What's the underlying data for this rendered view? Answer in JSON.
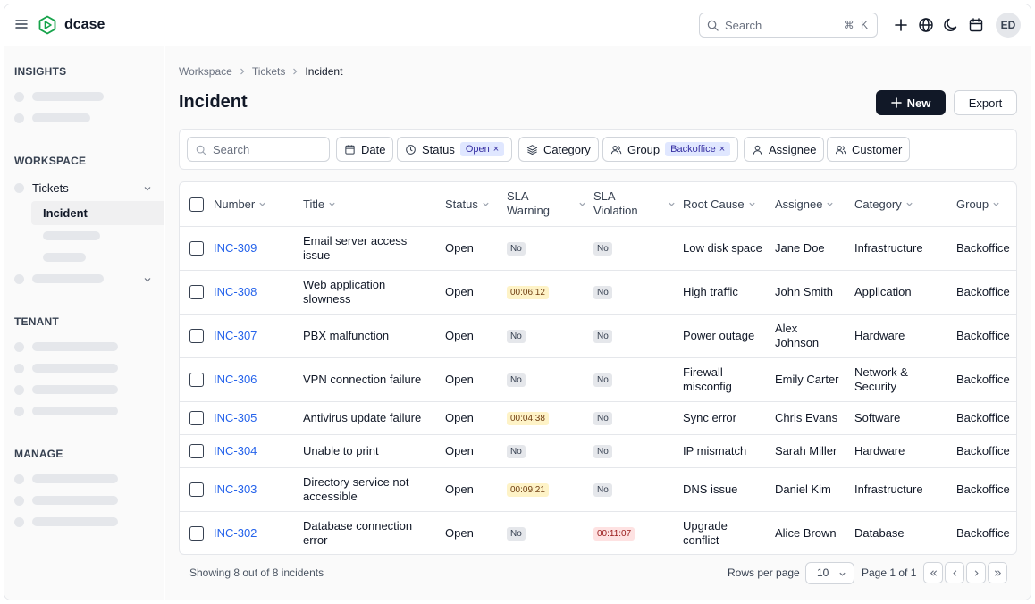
{
  "header": {
    "brand": "dcase",
    "search_placeholder": "Search",
    "search_shortcut": "⌘ K",
    "avatar_initials": "ED"
  },
  "sidebar": {
    "sections": {
      "insights": "INSIGHTS",
      "workspace": "WORKSPACE",
      "tenant": "TENANT",
      "manage": "MANAGE"
    },
    "tickets_label": "Tickets",
    "incident_label": "Incident"
  },
  "breadcrumb": [
    "Workspace",
    "Tickets",
    "Incident"
  ],
  "page": {
    "title": "Incident",
    "new_label": "New",
    "export_label": "Export"
  },
  "filters": {
    "search_placeholder": "Search",
    "date": "Date",
    "status": "Status",
    "status_tag": "Open",
    "category": "Category",
    "group": "Group",
    "group_tag": "Backoffice",
    "assignee": "Assignee",
    "customer": "Customer",
    "tag_remove": "×"
  },
  "table": {
    "columns": [
      "Number",
      "Title",
      "Status",
      "SLA Warning",
      "SLA Violation",
      "Root Cause",
      "Assignee",
      "Category",
      "Group"
    ],
    "rows": [
      {
        "number": "INC-309",
        "title": "Email server access issue",
        "status": "Open",
        "sla_warning": "No",
        "sla_violation": "No",
        "root_cause": "Low disk space",
        "assignee": "Jane Doe",
        "category": "Infrastructure",
        "group": "Backoffice"
      },
      {
        "number": "INC-308",
        "title": "Web application slowness",
        "status": "Open",
        "sla_warning": "00:06:12",
        "sla_violation": "No",
        "root_cause": "High traffic",
        "assignee": "John Smith",
        "category": "Application",
        "group": "Backoffice"
      },
      {
        "number": "INC-307",
        "title": "PBX malfunction",
        "status": "Open",
        "sla_warning": "No",
        "sla_violation": "No",
        "root_cause": "Power outage",
        "assignee": "Alex Johnson",
        "category": "Hardware",
        "group": "Backoffice"
      },
      {
        "number": "INC-306",
        "title": "VPN connection failure",
        "status": "Open",
        "sla_warning": "No",
        "sla_violation": "No",
        "root_cause": "Firewall misconfig",
        "assignee": "Emily Carter",
        "category": "Network & Security",
        "group": "Backoffice"
      },
      {
        "number": "INC-305",
        "title": "Antivirus update failure",
        "status": "Open",
        "sla_warning": "00:04:38",
        "sla_violation": "No",
        "root_cause": "Sync error",
        "assignee": "Chris Evans",
        "category": "Software",
        "group": "Backoffice"
      },
      {
        "number": "INC-304",
        "title": "Unable to print",
        "status": "Open",
        "sla_warning": "No",
        "sla_violation": "No",
        "root_cause": "IP mismatch",
        "assignee": "Sarah Miller",
        "category": "Hardware",
        "group": "Backoffice"
      },
      {
        "number": "INC-303",
        "title": "Directory service not accessible",
        "status": "Open",
        "sla_warning": "00:09:21",
        "sla_violation": "No",
        "root_cause": "DNS issue",
        "assignee": "Daniel Kim",
        "category": "Infrastructure",
        "group": "Backoffice"
      },
      {
        "number": "INC-302",
        "title": "Database connection error",
        "status": "Open",
        "sla_warning": "No",
        "sla_violation": "00:11:07",
        "root_cause": "Upgrade conflict",
        "assignee": "Alice Brown",
        "category": "Database",
        "group": "Backoffice"
      }
    ]
  },
  "footer": {
    "showing": "Showing 8 out of 8 incidents",
    "rows_per_page_label": "Rows per page",
    "rows_per_page_value": "10",
    "page_of": "Page 1 of 1"
  }
}
